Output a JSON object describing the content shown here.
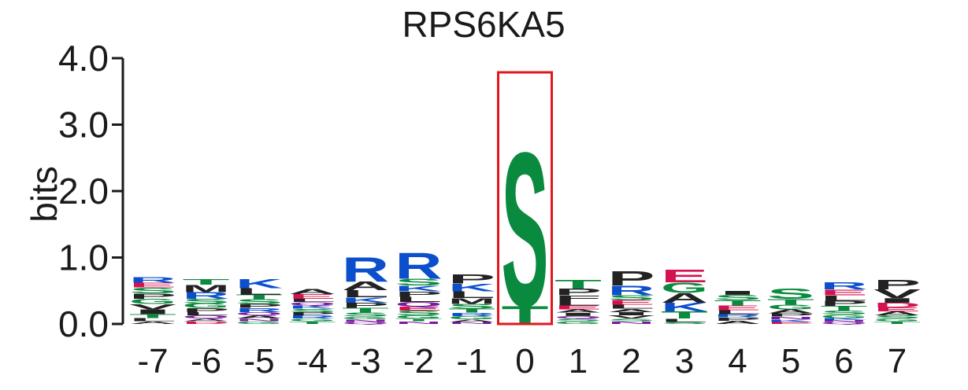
{
  "chart_data": {
    "type": "sequence-logo",
    "title": "RPS6KA5",
    "ylabel": "bits",
    "ylim": [
      0,
      4
    ],
    "yticks": [
      "0.0",
      "1.0",
      "2.0",
      "3.0",
      "4.0"
    ],
    "ytick_values": [
      0,
      1,
      2,
      3,
      4
    ],
    "highlight_position": "0",
    "highlight_color": "#e3161b",
    "colors": {
      "basic": "#0b4fcc",
      "hydrophobic": "#222222",
      "polar": "#0a8a3e",
      "acidic": "#d4124f",
      "amide": "#7a1aa0"
    },
    "residue_colors": {
      "R": "#0b4fcc",
      "K": "#0b4fcc",
      "H": "#0b4fcc",
      "S": "#0a8a3e",
      "T": "#0a8a3e",
      "G": "#0a8a3e",
      "Y": "#0a8a3e",
      "C": "#0a8a3e",
      "N": "#7a1aa0",
      "Q": "#7a1aa0",
      "D": "#d4124f",
      "E": "#d4124f",
      "P": "#222222",
      "A": "#222222",
      "L": "#222222",
      "M": "#222222",
      "V": "#222222",
      "I": "#222222",
      "F": "#222222",
      "W": "#222222"
    },
    "positions": [
      {
        "label": "-7",
        "stack": [
          [
            "A",
            0.04
          ],
          [
            "L",
            0.05
          ],
          [
            "T",
            0.06
          ],
          [
            "I",
            0.07
          ],
          [
            "V",
            0.08
          ],
          [
            "G",
            0.08
          ],
          [
            "P",
            0.08
          ],
          [
            "S",
            0.09
          ],
          [
            "E",
            0.07
          ],
          [
            "R",
            0.09
          ]
        ]
      },
      {
        "label": "-6",
        "stack": [
          [
            "D",
            0.04
          ],
          [
            "A",
            0.04
          ],
          [
            "Q",
            0.05
          ],
          [
            "L",
            0.05
          ],
          [
            "P",
            0.06
          ],
          [
            "G",
            0.07
          ],
          [
            "S",
            0.07
          ],
          [
            "R",
            0.1
          ],
          [
            "M",
            0.11
          ],
          [
            "T",
            0.09
          ]
        ]
      },
      {
        "label": "-5",
        "stack": [
          [
            "G",
            0.04
          ],
          [
            "N",
            0.04
          ],
          [
            "A",
            0.05
          ],
          [
            "Q",
            0.05
          ],
          [
            "R",
            0.06
          ],
          [
            "P",
            0.06
          ],
          [
            "S",
            0.07
          ],
          [
            "T",
            0.07
          ],
          [
            "L",
            0.1
          ],
          [
            "K",
            0.14
          ]
        ]
      },
      {
        "label": "-4",
        "stack": [
          [
            "T",
            0.04
          ],
          [
            "G",
            0.04
          ],
          [
            "R",
            0.05
          ],
          [
            "P",
            0.05
          ],
          [
            "S",
            0.05
          ],
          [
            "K",
            0.05
          ],
          [
            "Q",
            0.05
          ],
          [
            "L",
            0.05
          ],
          [
            "E",
            0.07
          ],
          [
            "A",
            0.08
          ]
        ]
      },
      {
        "label": "-3",
        "stack": [
          [
            "Q",
            0.03
          ],
          [
            "N",
            0.04
          ],
          [
            "G",
            0.04
          ],
          [
            "S",
            0.06
          ],
          [
            "T",
            0.07
          ],
          [
            "P",
            0.08
          ],
          [
            "K",
            0.08
          ],
          [
            "L",
            0.11
          ],
          [
            "A",
            0.13
          ],
          [
            "R",
            0.38
          ]
        ]
      },
      {
        "label": "-2",
        "stack": [
          [
            "N",
            0.04
          ],
          [
            "T",
            0.04
          ],
          [
            "G",
            0.05
          ],
          [
            "S",
            0.07
          ],
          [
            "E",
            0.06
          ],
          [
            "Q",
            0.07
          ],
          [
            "L",
            0.08
          ],
          [
            "P",
            0.08
          ],
          [
            "K",
            0.09
          ],
          [
            "S",
            0.1
          ],
          [
            "R",
            0.4
          ]
        ]
      },
      {
        "label": "-1",
        "stack": [
          [
            "N",
            0.03
          ],
          [
            "A",
            0.04
          ],
          [
            "G",
            0.05
          ],
          [
            "R",
            0.05
          ],
          [
            "T",
            0.06
          ],
          [
            "S",
            0.07
          ],
          [
            "M",
            0.09
          ],
          [
            "L",
            0.1
          ],
          [
            "K",
            0.12
          ],
          [
            "P",
            0.14
          ]
        ]
      },
      {
        "label": "0",
        "stack": [
          [
            "T",
            0.28
          ],
          [
            "S",
            2.38
          ]
        ]
      },
      {
        "label": "1",
        "stack": [
          [
            "G",
            0.04
          ],
          [
            "S",
            0.04
          ],
          [
            "Q",
            0.04
          ],
          [
            "I",
            0.05
          ],
          [
            "A",
            0.05
          ],
          [
            "E",
            0.06
          ],
          [
            "L",
            0.07
          ],
          [
            "F",
            0.08
          ],
          [
            "P",
            0.1
          ],
          [
            "T",
            0.13
          ]
        ]
      },
      {
        "label": "2",
        "stack": [
          [
            "N",
            0.04
          ],
          [
            "S",
            0.04
          ],
          [
            "V",
            0.05
          ],
          [
            "I",
            0.05
          ],
          [
            "A",
            0.05
          ],
          [
            "L",
            0.06
          ],
          [
            "E",
            0.07
          ],
          [
            "S",
            0.07
          ],
          [
            "R",
            0.15
          ],
          [
            "P",
            0.22
          ]
        ]
      },
      {
        "label": "3",
        "stack": [
          [
            "S",
            0.03
          ],
          [
            "L",
            0.05
          ],
          [
            "T",
            0.11
          ],
          [
            "K",
            0.13
          ],
          [
            "A",
            0.15
          ],
          [
            "G",
            0.16
          ],
          [
            "E",
            0.2
          ]
        ]
      },
      {
        "label": "4",
        "stack": [
          [
            "A",
            0.05
          ],
          [
            "P",
            0.05
          ],
          [
            "R",
            0.05
          ],
          [
            "L",
            0.06
          ],
          [
            "E",
            0.07
          ],
          [
            "T",
            0.08
          ],
          [
            "S",
            0.08
          ],
          [
            "I",
            0.06
          ]
        ]
      },
      {
        "label": "5",
        "stack": [
          [
            "E",
            0.03
          ],
          [
            "K",
            0.04
          ],
          [
            "N",
            0.04
          ],
          [
            "P",
            0.05
          ],
          [
            "A",
            0.06
          ],
          [
            "G",
            0.07
          ],
          [
            "T",
            0.09
          ],
          [
            "S",
            0.16
          ]
        ]
      },
      {
        "label": "6",
        "stack": [
          [
            "Q",
            0.03
          ],
          [
            "N",
            0.03
          ],
          [
            "K",
            0.03
          ],
          [
            "G",
            0.05
          ],
          [
            "S",
            0.06
          ],
          [
            "T",
            0.07
          ],
          [
            "P",
            0.08
          ],
          [
            "L",
            0.08
          ],
          [
            "E",
            0.09
          ],
          [
            "R",
            0.11
          ]
        ]
      },
      {
        "label": "7",
        "stack": [
          [
            "T",
            0.04
          ],
          [
            "G",
            0.04
          ],
          [
            "S",
            0.05
          ],
          [
            "A",
            0.06
          ],
          [
            "E",
            0.06
          ],
          [
            "D",
            0.07
          ],
          [
            "I",
            0.07
          ],
          [
            "V",
            0.13
          ],
          [
            "P",
            0.15
          ]
        ]
      }
    ]
  }
}
